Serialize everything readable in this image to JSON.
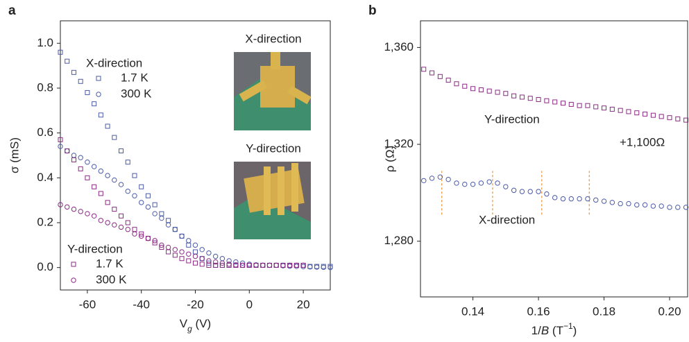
{
  "chart_data": [
    {
      "type": "scatter",
      "panel_label": "a",
      "xlabel": [
        "V",
        "g",
        " (V)"
      ],
      "ylabel": "σ (mS)",
      "xlim": [
        -70,
        30
      ],
      "ylim": [
        -0.1,
        1.1
      ],
      "xticks": [
        -60,
        -40,
        -20,
        0,
        20
      ],
      "yticks": [
        {
          "value": 0,
          "label": "0.0"
        },
        {
          "value": 0.2,
          "label": "0.2"
        },
        {
          "value": 0.4,
          "label": "0.4"
        },
        {
          "value": 0.6,
          "label": "0.6"
        },
        {
          "value": 0.8,
          "label": "0.8"
        },
        {
          "value": 1.0,
          "label": "1.0"
        }
      ],
      "x": [
        -70,
        -67.5,
        -65,
        -62.5,
        -60,
        -57.5,
        -55,
        -52.5,
        -50,
        -47.5,
        -45,
        -42.5,
        -40,
        -37.5,
        -35,
        -32.5,
        -30,
        -27.5,
        -25,
        -22.5,
        -20,
        -17.5,
        -15,
        -12.5,
        -10,
        -7.5,
        -5,
        -2.5,
        0,
        2.5,
        5,
        7.5,
        10,
        12.5,
        15,
        17.5,
        20,
        22.5,
        25,
        27.5,
        30
      ],
      "legend_titles": [
        "X-direction",
        "Y-direction"
      ],
      "inset_labels": [
        "X-direction",
        "Y-direction"
      ],
      "series": [
        {
          "name": "1.7 K",
          "color": "#4a5aa8",
          "marker": "square",
          "values": [
            0.96,
            0.92,
            0.87,
            0.83,
            0.78,
            0.73,
            0.68,
            0.63,
            0.58,
            0.52,
            0.47,
            0.41,
            0.36,
            0.32,
            0.28,
            0.24,
            0.21,
            0.17,
            0.14,
            0.1,
            0.07,
            0.04,
            0.02,
            0.01,
            0.01,
            0.01,
            0.01,
            0.01,
            0.01,
            0.01,
            0.01,
            0.01,
            0.01,
            0.01,
            0.01,
            0.01,
            0.01,
            0.005,
            0.005,
            0.005,
            0.005
          ]
        },
        {
          "name": "300 K",
          "color": "#4a5aa8",
          "marker": "circle",
          "values": [
            0.54,
            0.52,
            0.5,
            0.49,
            0.47,
            0.45,
            0.43,
            0.41,
            0.39,
            0.37,
            0.34,
            0.32,
            0.29,
            0.27,
            0.24,
            0.22,
            0.19,
            0.17,
            0.14,
            0.12,
            0.1,
            0.08,
            0.065,
            0.05,
            0.04,
            0.03,
            0.025,
            0.02,
            0.015,
            0.012,
            0.01,
            0.01,
            0.01,
            0.008,
            0.006,
            0.005,
            0.004,
            0.003,
            0.002,
            0.001,
            0
          ]
        },
        {
          "name": "1.7 K",
          "color": "#8b2a84",
          "marker": "square",
          "values": [
            0.57,
            0.52,
            0.48,
            0.44,
            0.4,
            0.36,
            0.33,
            0.29,
            0.26,
            0.23,
            0.2,
            0.17,
            0.15,
            0.13,
            0.11,
            0.09,
            0.07,
            0.055,
            0.04,
            0.03,
            0.02,
            0.015,
            0.01,
            0.01,
            0.01,
            0.01,
            0.01,
            0.01,
            0.01,
            0.01,
            0.01,
            0.01,
            0.01,
            0.01,
            0.01,
            0.01,
            0.01,
            null,
            null,
            null,
            null
          ]
        },
        {
          "name": "300 K",
          "color": "#8b2a84",
          "marker": "circle",
          "values": [
            0.28,
            0.27,
            0.26,
            0.25,
            0.24,
            0.23,
            0.21,
            0.2,
            0.19,
            0.18,
            0.17,
            0.15,
            0.14,
            0.13,
            0.12,
            0.1,
            0.09,
            0.08,
            0.07,
            0.06,
            0.05,
            0.04,
            0.03,
            0.025,
            0.02,
            0.015,
            0.012,
            0.01,
            0.01,
            0.01,
            0.01,
            0.01,
            0.01,
            0.01,
            0.01,
            0.01,
            0.01,
            null,
            null,
            null,
            null
          ]
        }
      ]
    },
    {
      "type": "scatter",
      "panel_label": "b",
      "xlabel": [
        "1/",
        "B",
        " (T",
        "−1",
        ")"
      ],
      "ylabel": "ρ (Ω)",
      "xlim": [
        0.124,
        0.2055
      ],
      "ylim": [
        1257,
        1371
      ],
      "xticks": [
        0.14,
        0.16,
        0.18,
        {
          "value": 0.2,
          "label": "0.20"
        }
      ],
      "yticks": [
        {
          "value": 1280,
          "label": "1,280"
        },
        {
          "value": 1320,
          "label": "1,320"
        },
        {
          "value": 1360,
          "label": "1,360"
        }
      ],
      "x": [
        0.125,
        0.1275,
        0.13,
        0.1325,
        0.135,
        0.1375,
        0.14,
        0.1425,
        0.145,
        0.1475,
        0.15,
        0.1525,
        0.155,
        0.1575,
        0.16,
        0.1625,
        0.165,
        0.1675,
        0.17,
        0.1725,
        0.175,
        0.1775,
        0.18,
        0.1825,
        0.185,
        0.1875,
        0.19,
        0.1925,
        0.195,
        0.1975,
        0.2,
        0.2025,
        0.205
      ],
      "annotations": [
        {
          "text": "Y-direction",
          "color": "#8b2a84"
        },
        {
          "text": "+1,100Ω",
          "color": "#8b2a84"
        },
        {
          "text": "X-direction",
          "color": "#4a5aa8"
        }
      ],
      "dashed_lines": {
        "x": [
          0.1305,
          0.146,
          0.161,
          0.1755
        ],
        "y_range": [
          1291,
          1309
        ],
        "color": "#e8913a"
      },
      "series": [
        {
          "name": "Y-direction",
          "color": "#8b2a84",
          "marker": "square",
          "values": [
            1351,
            1349.5,
            1348,
            1346.5,
            1345,
            1344,
            1343,
            1342.5,
            1342,
            1341.5,
            1341,
            1340,
            1339.5,
            1339,
            1338.5,
            1338,
            1337.5,
            1337,
            1336.5,
            1336,
            1336,
            1335.5,
            1335,
            1334.5,
            1334,
            1333.5,
            1333,
            1332.5,
            1332,
            1331.5,
            1331,
            1330.5,
            1330
          ]
        },
        {
          "name": "X-direction",
          "color": "#4a5aa8",
          "marker": "circle",
          "values": [
            1305,
            1306,
            1306.5,
            1305.5,
            1304,
            1303.5,
            1303.5,
            1304,
            1304.5,
            1304,
            1302.5,
            1301,
            1300.5,
            1300.5,
            1300.5,
            1299.5,
            1298,
            1297.5,
            1297.5,
            1297.5,
            1297.5,
            1297,
            1296.5,
            1296,
            1295.5,
            1295.5,
            1295,
            1295,
            1294.5,
            1294.5,
            1294,
            1294,
            1294
          ]
        }
      ]
    }
  ]
}
